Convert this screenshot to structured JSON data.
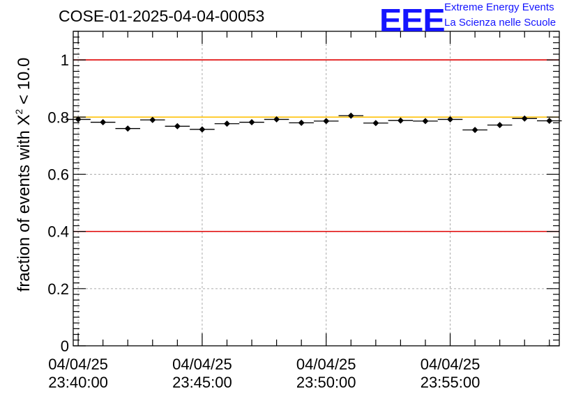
{
  "header": {
    "run_title": "COSE-01-2025-04-04-00053",
    "logo_text": "EEE",
    "tagline_1": "Extreme Energy Events",
    "tagline_2": "La Scienza nelle Scuole"
  },
  "colors": {
    "threshold_red": "#e00000",
    "reference_yellow": "#ffc000",
    "grid": "#aaaaaa",
    "brand_blue": "#1414ff"
  },
  "chart_data": {
    "type": "scatter",
    "title": "COSE-01-2025-04-04-00053",
    "xlabel": "",
    "ylabel_main": "fraction of events with ",
    "ylabel_symbol": "X",
    "ylabel_exponent": "2",
    "ylabel_tail": " < 10.0",
    "ylim": [
      0,
      1.1
    ],
    "y_ticks": [
      0,
      0.2,
      0.4,
      0.6,
      0.8,
      1
    ],
    "y_tick_labels": [
      "0",
      "0.2",
      "0.4",
      "0.6",
      "0.8",
      "1"
    ],
    "x_unit": "minutes after 23:40:00",
    "xlim": [
      -0.2,
      19.4
    ],
    "x_ticks": [
      0,
      5,
      10,
      15
    ],
    "x_tick_labels": [
      [
        "04/04/25",
        "23:40:00"
      ],
      [
        "04/04/25",
        "23:45:00"
      ],
      [
        "04/04/25",
        "23:50:00"
      ],
      [
        "04/04/25",
        "23:55:00"
      ]
    ],
    "reference_lines": [
      {
        "y": 1.0,
        "color": "#e00000"
      },
      {
        "y": 0.4,
        "color": "#e00000"
      },
      {
        "y": 0.8,
        "color": "#ffc000"
      }
    ],
    "series": [
      {
        "name": "fraction",
        "bin_width": 1,
        "x": [
          0,
          1,
          2,
          3,
          4,
          5,
          6,
          7,
          8,
          9,
          10,
          11,
          12,
          13,
          14,
          15,
          16,
          17,
          18,
          19
        ],
        "y": [
          0.792,
          0.782,
          0.76,
          0.79,
          0.768,
          0.757,
          0.777,
          0.782,
          0.792,
          0.78,
          0.786,
          0.805,
          0.779,
          0.788,
          0.786,
          0.792,
          0.755,
          0.772,
          0.795,
          0.787
        ],
        "yerr": [
          0.008,
          0.008,
          0.008,
          0.008,
          0.008,
          0.008,
          0.008,
          0.008,
          0.008,
          0.008,
          0.008,
          0.008,
          0.008,
          0.008,
          0.008,
          0.008,
          0.008,
          0.008,
          0.008,
          0.008
        ]
      }
    ]
  }
}
